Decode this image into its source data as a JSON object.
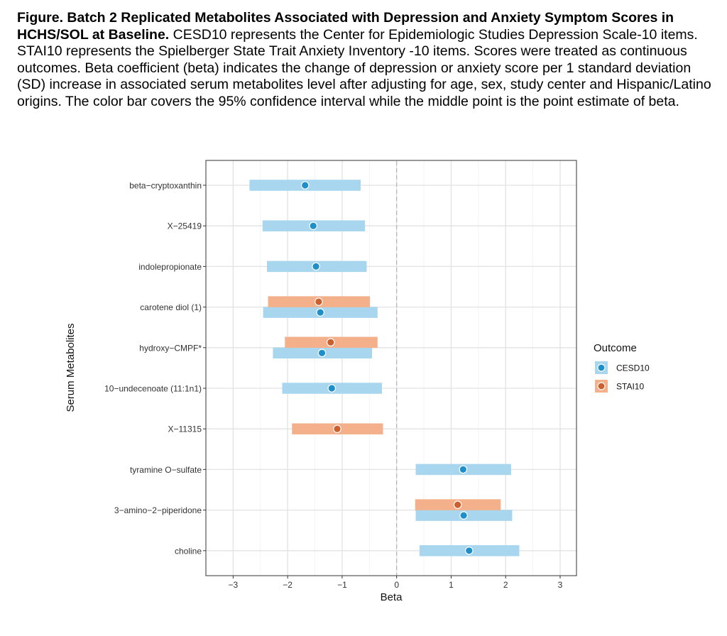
{
  "caption": {
    "bold": "Figure. Batch 2 Replicated Metabolites Associated with Depression and Anxiety Symptom Scores in HCHS/SOL at Baseline.",
    "text": " CESD10 represents the Center for Epidemiologic Studies Depression Scale-10 items. STAI10 represents the Spielberger State Trait Anxiety Inventory -10 items. Scores were treated as continuous outcomes. Beta coefficient (beta) indicates the change of depression or anxiety score per 1 standard deviation (SD) increase in associated serum metabolites level after adjusting for age, sex, study center and Hispanic/Latino origins. The color bar covers the 95% confidence interval while the middle point is the point estimate of beta."
  },
  "colors": {
    "CESD10_bar": "#a8d6ef",
    "CESD10_point": "#1f8fc9",
    "STAI10_bar": "#f3b08a",
    "STAI10_point": "#cc5f2e"
  },
  "chart_data": {
    "type": "forest",
    "xlabel": "Beta",
    "ylabel": "Serum Metabolites",
    "xlim": [
      -3.5,
      3.3
    ],
    "xticks": [
      -3,
      -2,
      -1,
      0,
      1,
      2,
      3
    ],
    "xtick_labels": [
      "−3",
      "−2",
      "−1",
      "0",
      "1",
      "2",
      "3"
    ],
    "reference_line": 0,
    "grid": true,
    "legend": {
      "title": "Outcome",
      "position": "right",
      "entries": [
        "CESD10",
        "STAI10"
      ]
    },
    "categories": [
      "beta−cryptoxanthin",
      "X−25419",
      "indolepropionate",
      "carotene diol (1)",
      "hydroxy−CMPF*",
      "10−undecenoate (11:1n1)",
      "X−11315",
      "tyramine O−sulfate",
      "3−amino−2−piperidone",
      "choline"
    ],
    "series": [
      {
        "name": "CESD10",
        "data": [
          {
            "category": "beta−cryptoxanthin",
            "beta": -1.68,
            "lower": -2.7,
            "upper": -0.66
          },
          {
            "category": "X−25419",
            "beta": -1.53,
            "lower": -2.46,
            "upper": -0.58
          },
          {
            "category": "indolepropionate",
            "beta": -1.48,
            "lower": -2.38,
            "upper": -0.55
          },
          {
            "category": "carotene diol (1)",
            "beta": -1.4,
            "lower": -2.45,
            "upper": -0.35
          },
          {
            "category": "hydroxy−CMPF*",
            "beta": -1.37,
            "lower": -2.27,
            "upper": -0.45
          },
          {
            "category": "10−undecenoate (11:1n1)",
            "beta": -1.19,
            "lower": -2.1,
            "upper": -0.27
          },
          {
            "category": "tyramine O−sulfate",
            "beta": 1.22,
            "lower": 0.35,
            "upper": 2.1
          },
          {
            "category": "3−amino−2−piperidone",
            "beta": 1.23,
            "lower": 0.35,
            "upper": 2.12
          },
          {
            "category": "choline",
            "beta": 1.33,
            "lower": 0.42,
            "upper": 2.25
          }
        ]
      },
      {
        "name": "STAI10",
        "data": [
          {
            "category": "carotene diol (1)",
            "beta": -1.43,
            "lower": -2.36,
            "upper": -0.49
          },
          {
            "category": "hydroxy−CMPF*",
            "beta": -1.21,
            "lower": -2.05,
            "upper": -0.35
          },
          {
            "category": "X−11315",
            "beta": -1.09,
            "lower": -1.92,
            "upper": -0.25
          },
          {
            "category": "3−amino−2−piperidone",
            "beta": 1.12,
            "lower": 0.34,
            "upper": 1.91
          }
        ]
      }
    ]
  }
}
